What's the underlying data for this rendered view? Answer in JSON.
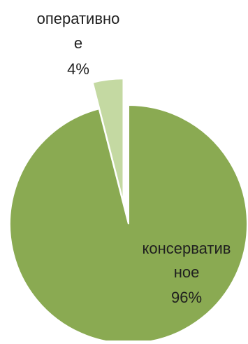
{
  "chart_data": {
    "type": "pie",
    "title": "",
    "slices": [
      {
        "label_lines": [
          "оперативно",
          "е"
        ],
        "value": 4,
        "percent_label": "4%",
        "color": "#c4d9a2"
      },
      {
        "label_lines": [
          "консерватив",
          "ное"
        ],
        "value": 96,
        "percent_label": "96%",
        "color": "#8aaa52"
      }
    ],
    "legend": "none",
    "exploded_slice": "оперативно е"
  }
}
